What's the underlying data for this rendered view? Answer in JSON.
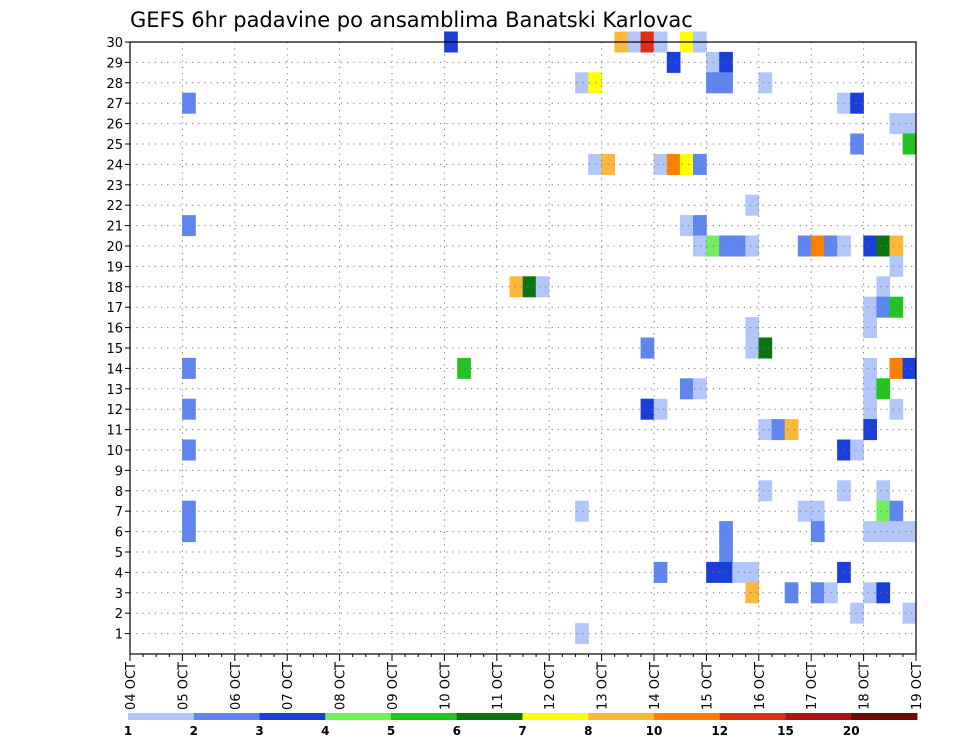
{
  "chart_data": {
    "type": "heatmap",
    "title": "GEFS 6hr padavine po ansamblima Banatski Karlovac",
    "x_tick_labels": [
      "04 OCT",
      "05 OCT",
      "06 OCT",
      "07 OCT",
      "08 OCT",
      "09 OCT",
      "10 OCT",
      "11 OCT",
      "12 OCT",
      "13 OCT",
      "14 OCT",
      "15 OCT",
      "16 OCT",
      "17 OCT",
      "18 OCT",
      "19 OCT"
    ],
    "y_tick_labels": [
      "1",
      "2",
      "3",
      "4",
      "5",
      "6",
      "7",
      "8",
      "9",
      "10",
      "11",
      "12",
      "13",
      "14",
      "15",
      "16",
      "17",
      "18",
      "19",
      "20",
      "21",
      "22",
      "23",
      "24",
      "25",
      "26",
      "27",
      "28",
      "29",
      "30"
    ],
    "xlim_steps": [
      0,
      60
    ],
    "ylim_members": [
      0,
      30
    ],
    "grid": true,
    "colorbar": {
      "levels": [
        "1",
        "2",
        "3",
        "4",
        "5",
        "6",
        "7",
        "8",
        "10",
        "12",
        "15",
        "20"
      ],
      "colors": [
        "#b2c6fa",
        "#5f86ee",
        "#1a3ed8",
        "#72f05e",
        "#22c322",
        "#0a7410",
        "#ffff00",
        "#fdb73c",
        "#ff7f00",
        "#e02f12",
        "#b01212",
        "#6a0c0c"
      ]
    },
    "cells": [
      {
        "step": 4,
        "member": 27,
        "c": 1
      },
      {
        "step": 4,
        "member": 21,
        "c": 1
      },
      {
        "step": 4,
        "member": 14,
        "c": 1
      },
      {
        "step": 4,
        "member": 12,
        "c": 1
      },
      {
        "step": 4,
        "member": 10,
        "c": 1
      },
      {
        "step": 4,
        "member": 7,
        "c": 1
      },
      {
        "step": 4,
        "member": 6,
        "c": 1
      },
      {
        "step": 24,
        "member": 30,
        "c": 2
      },
      {
        "step": 25,
        "member": 14,
        "c": 4
      },
      {
        "step": 29,
        "member": 18,
        "c": 7
      },
      {
        "step": 30,
        "member": 18,
        "c": 5
      },
      {
        "step": 31,
        "member": 18,
        "c": 0
      },
      {
        "step": 34,
        "member": 28,
        "c": 0
      },
      {
        "step": 35,
        "member": 28,
        "c": 6
      },
      {
        "step": 34,
        "member": 7,
        "c": 0
      },
      {
        "step": 34,
        "member": 1,
        "c": 0
      },
      {
        "step": 35,
        "member": 24,
        "c": 0
      },
      {
        "step": 36,
        "member": 24,
        "c": 7
      },
      {
        "step": 37,
        "member": 30,
        "c": 7
      },
      {
        "step": 38,
        "member": 30,
        "c": 0
      },
      {
        "step": 39,
        "member": 30,
        "c": 9
      },
      {
        "step": 40,
        "member": 30,
        "c": 0
      },
      {
        "step": 42,
        "member": 30,
        "c": 6
      },
      {
        "step": 43,
        "member": 30,
        "c": 0
      },
      {
        "step": 39,
        "member": 15,
        "c": 1
      },
      {
        "step": 39,
        "member": 12,
        "c": 2
      },
      {
        "step": 40,
        "member": 12,
        "c": 0
      },
      {
        "step": 40,
        "member": 24,
        "c": 0
      },
      {
        "step": 41,
        "member": 24,
        "c": 8
      },
      {
        "step": 42,
        "member": 24,
        "c": 6
      },
      {
        "step": 43,
        "member": 24,
        "c": 1
      },
      {
        "step": 40,
        "member": 4,
        "c": 1
      },
      {
        "step": 41,
        "member": 29,
        "c": 2
      },
      {
        "step": 42,
        "member": 21,
        "c": 0
      },
      {
        "step": 43,
        "member": 21,
        "c": 1
      },
      {
        "step": 42,
        "member": 13,
        "c": 1
      },
      {
        "step": 43,
        "member": 13,
        "c": 0
      },
      {
        "step": 43,
        "member": 20,
        "c": 0
      },
      {
        "step": 44,
        "member": 20,
        "c": 3
      },
      {
        "step": 45,
        "member": 20,
        "c": 1
      },
      {
        "step": 46,
        "member": 20,
        "c": 1
      },
      {
        "step": 47,
        "member": 20,
        "c": 0
      },
      {
        "step": 44,
        "member": 29,
        "c": 0
      },
      {
        "step": 45,
        "member": 29,
        "c": 2
      },
      {
        "step": 44,
        "member": 28,
        "c": 1
      },
      {
        "step": 45,
        "member": 28,
        "c": 1
      },
      {
        "step": 45,
        "member": 6,
        "c": 1
      },
      {
        "step": 45,
        "member": 5,
        "c": 1
      },
      {
        "step": 44,
        "member": 4,
        "c": 2
      },
      {
        "step": 45,
        "member": 4,
        "c": 2
      },
      {
        "step": 46,
        "member": 4,
        "c": 0
      },
      {
        "step": 47,
        "member": 4,
        "c": 0
      },
      {
        "step": 47,
        "member": 22,
        "c": 0
      },
      {
        "step": 47,
        "member": 16,
        "c": 0
      },
      {
        "step": 47,
        "member": 15,
        "c": 0
      },
      {
        "step": 48,
        "member": 15,
        "c": 5
      },
      {
        "step": 47,
        "member": 3,
        "c": 7
      },
      {
        "step": 48,
        "member": 28,
        "c": 0
      },
      {
        "step": 48,
        "member": 11,
        "c": 0
      },
      {
        "step": 49,
        "member": 11,
        "c": 1
      },
      {
        "step": 50,
        "member": 11,
        "c": 7
      },
      {
        "step": 48,
        "member": 8,
        "c": 0
      },
      {
        "step": 50,
        "member": 3,
        "c": 1
      },
      {
        "step": 51,
        "member": 20,
        "c": 1
      },
      {
        "step": 52,
        "member": 20,
        "c": 8
      },
      {
        "step": 53,
        "member": 20,
        "c": 1
      },
      {
        "step": 54,
        "member": 20,
        "c": 0
      },
      {
        "step": 51,
        "member": 7,
        "c": 0
      },
      {
        "step": 52,
        "member": 7,
        "c": 0
      },
      {
        "step": 52,
        "member": 6,
        "c": 1
      },
      {
        "step": 52,
        "member": 3,
        "c": 1
      },
      {
        "step": 53,
        "member": 3,
        "c": 0
      },
      {
        "step": 54,
        "member": 27,
        "c": 0
      },
      {
        "step": 55,
        "member": 27,
        "c": 2
      },
      {
        "step": 55,
        "member": 25,
        "c": 1
      },
      {
        "step": 54,
        "member": 10,
        "c": 2
      },
      {
        "step": 55,
        "member": 10,
        "c": 0
      },
      {
        "step": 54,
        "member": 8,
        "c": 0
      },
      {
        "step": 54,
        "member": 4,
        "c": 2
      },
      {
        "step": 55,
        "member": 2,
        "c": 0
      },
      {
        "step": 56,
        "member": 20,
        "c": 2
      },
      {
        "step": 57,
        "member": 20,
        "c": 5
      },
      {
        "step": 58,
        "member": 20,
        "c": 7
      },
      {
        "step": 58,
        "member": 19,
        "c": 0
      },
      {
        "step": 57,
        "member": 18,
        "c": 0
      },
      {
        "step": 56,
        "member": 17,
        "c": 0
      },
      {
        "step": 57,
        "member": 17,
        "c": 1
      },
      {
        "step": 58,
        "member": 17,
        "c": 4
      },
      {
        "step": 56,
        "member": 16,
        "c": 0
      },
      {
        "step": 56,
        "member": 14,
        "c": 0
      },
      {
        "step": 58,
        "member": 14,
        "c": 8
      },
      {
        "step": 59,
        "member": 14,
        "c": 2
      },
      {
        "step": 56,
        "member": 13,
        "c": 0
      },
      {
        "step": 57,
        "member": 13,
        "c": 4
      },
      {
        "step": 56,
        "member": 12,
        "c": 0
      },
      {
        "step": 58,
        "member": 12,
        "c": 0
      },
      {
        "step": 56,
        "member": 11,
        "c": 2
      },
      {
        "step": 57,
        "member": 8,
        "c": 0
      },
      {
        "step": 57,
        "member": 7,
        "c": 3
      },
      {
        "step": 58,
        "member": 7,
        "c": 1
      },
      {
        "step": 56,
        "member": 6,
        "c": 0
      },
      {
        "step": 57,
        "member": 6,
        "c": 0
      },
      {
        "step": 58,
        "member": 6,
        "c": 0
      },
      {
        "step": 59,
        "member": 6,
        "c": 0
      },
      {
        "step": 56,
        "member": 3,
        "c": 0
      },
      {
        "step": 57,
        "member": 3,
        "c": 2
      },
      {
        "step": 59,
        "member": 2,
        "c": 0
      },
      {
        "step": 58,
        "member": 26,
        "c": 0
      },
      {
        "step": 59,
        "member": 26,
        "c": 0
      },
      {
        "step": 59,
        "member": 25,
        "c": 4
      }
    ]
  }
}
